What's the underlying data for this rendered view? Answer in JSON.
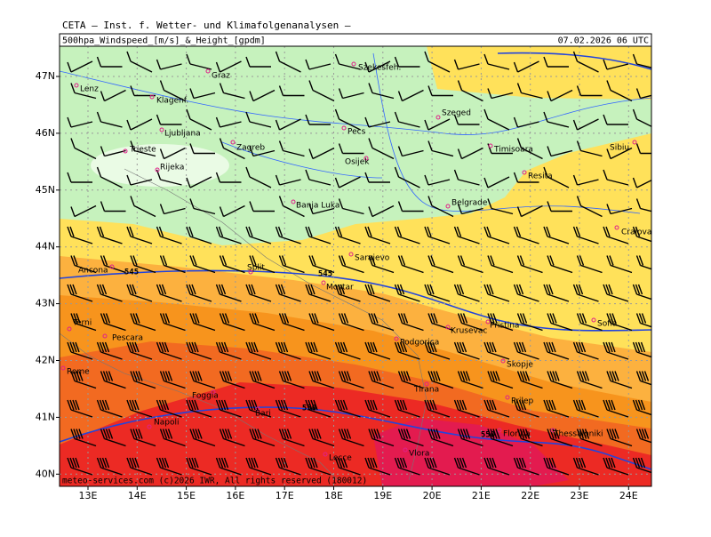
{
  "header": "CETA — Inst. f. Wetter- und Klimafolgenanalysen —",
  "title": {
    "left": "500hpa_Windspeed_[m/s]_&_Height_[gpdm]",
    "right": "07.02.2026 06 UTC"
  },
  "lon_labels": [
    "13E",
    "14E",
    "15E",
    "16E",
    "17E",
    "18E",
    "19E",
    "20E",
    "21E",
    "22E",
    "23E",
    "24E"
  ],
  "lat_labels": [
    "47N",
    "46N",
    "45N",
    "44N",
    "43N",
    "42N",
    "41N",
    "40N"
  ],
  "cities": [
    "Lenz",
    "Graz",
    "Szekesfeh.",
    "Klagenf.",
    "Szeged",
    "Ljubljana",
    "Pecs",
    "Zagreb",
    "Timisoara",
    "Sibiu",
    "Trieste",
    "Osijek",
    "Rijeka",
    "Resita",
    "Banja Luka",
    "Belgrade",
    "Craiova",
    "Sarajevo",
    "Ancona",
    "Split",
    "Mostar",
    "Terni",
    "Krusevac",
    "Pristina",
    "Sofia",
    "Pescara",
    "Podgorica",
    "Skopje",
    "Rome",
    "Tirana",
    "Prilep",
    "Foggia",
    "Bari",
    "Napoli",
    "Florina",
    "Thessaloniki",
    "Vlora",
    "Lecce"
  ],
  "contour_labels": [
    "545",
    "545",
    "550",
    "550"
  ],
  "footer": "meteo-services.com  (c)2026 IWR, All rights reserved (180012)"
}
